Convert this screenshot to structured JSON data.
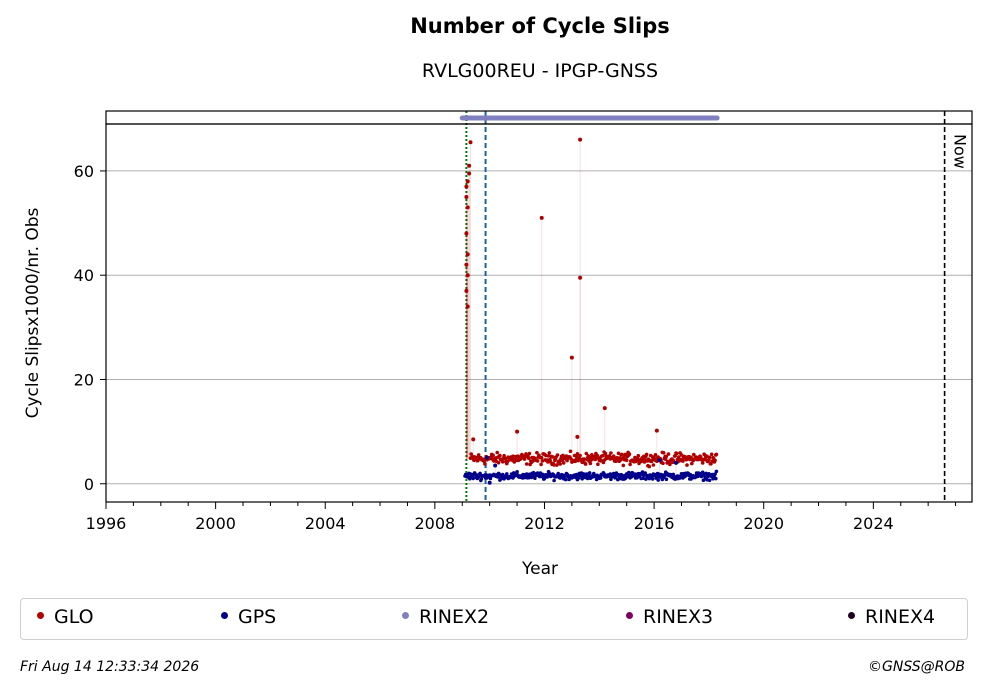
{
  "chart_data": {
    "type": "scatter",
    "title": "Number of Cycle Slips",
    "subtitle": "RVLG00REU - IPGP-GNSS",
    "xlabel": "Year",
    "ylabel": "Cycle Slipsx1000/nr. Obs",
    "xlim": [
      1996,
      2027.6
    ],
    "ylim": [
      -3.5,
      69
    ],
    "x_ticks": [
      "1996",
      "2000",
      "2004",
      "2008",
      "2012",
      "2016",
      "2020",
      "2024"
    ],
    "y_ticks": [
      "0",
      "20",
      "40",
      "60"
    ],
    "grid": "horizontal",
    "legend_position": "bottom",
    "now_label": "Now",
    "now_year": 2026.6,
    "vertical_markers": [
      {
        "year": 2009.15,
        "color": "#007a00",
        "style": "dotted"
      },
      {
        "year": 2009.85,
        "color": "#1f5fa8",
        "style": "dashed"
      }
    ],
    "rinex_bars": [
      {
        "name": "RINEX2",
        "start": 2009.0,
        "end": 2018.3,
        "color": "#8080c0"
      }
    ],
    "series": [
      {
        "name": "GLO",
        "color": "#b00000",
        "spikes": [
          [
            2009.15,
            57
          ],
          [
            2009.15,
            55
          ],
          [
            2009.2,
            58
          ],
          [
            2009.2,
            53
          ],
          [
            2009.15,
            48
          ],
          [
            2009.2,
            44
          ],
          [
            2009.15,
            42
          ],
          [
            2009.2,
            40
          ],
          [
            2009.15,
            37
          ],
          [
            2009.2,
            34
          ],
          [
            2009.3,
            65.5
          ],
          [
            2009.25,
            61
          ],
          [
            2009.25,
            59.5
          ],
          [
            2011.9,
            51
          ],
          [
            2013.3,
            66
          ],
          [
            2013.3,
            39.5
          ],
          [
            2013.0,
            24.2
          ],
          [
            2014.2,
            14.5
          ],
          [
            2011.0,
            10
          ],
          [
            2016.1,
            10.2
          ],
          [
            2009.4,
            8.5
          ],
          [
            2013.2,
            9
          ]
        ],
        "band": {
          "start": 2009.3,
          "end": 2018.3,
          "center": 4.8,
          "spread": 1.6
        }
      },
      {
        "name": "GPS",
        "color": "#00008b",
        "spikes": [
          [
            2009.9,
            5
          ],
          [
            2010.2,
            3.5
          ],
          [
            2010.0,
            0.2
          ],
          [
            2016.2,
            4.5
          ],
          [
            2016.8,
            4
          ]
        ],
        "band": {
          "start": 2009.1,
          "end": 2018.3,
          "center": 1.5,
          "spread": 1.0
        }
      },
      {
        "name": "RINEX2",
        "color": "#8080c0"
      },
      {
        "name": "RINEX3",
        "color": "#800060"
      },
      {
        "name": "RINEX4",
        "color": "#200020"
      }
    ]
  },
  "footer": {
    "timestamp": "Fri Aug 14 12:33:34 2026",
    "credit": "©GNSS@ROB"
  }
}
